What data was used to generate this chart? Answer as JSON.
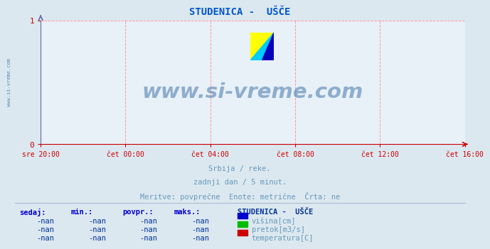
{
  "title": "STUDENICA -  UŠČE",
  "title_color": "#0055cc",
  "bg_color": "#dce8f0",
  "plot_bg_color": "#e8f0f8",
  "watermark_text": "www.si-vreme.com",
  "watermark_color": "#4477aa",
  "watermark_alpha": 0.55,
  "subtitle1": "Srbija / reke.",
  "subtitle2": "zadnji dan / 5 minut.",
  "subtitle3": "Meritve: povprečne  Enote: metrične  Črta: ne",
  "subtitle_color": "#6699bb",
  "xticklabels": [
    "sre 20:00",
    "čet 00:00",
    "čet 04:00",
    "čet 08:00",
    "čet 12:00",
    "čet 16:00"
  ],
  "yticks": [
    0,
    1
  ],
  "ylim": [
    0,
    1
  ],
  "grid_color": "#ff9999",
  "grid_style": "--",
  "xaxis_color": "#cc0000",
  "yaxis_color": "#6666aa",
  "tick_color": "#cc0000",
  "tick_label_color": "#cc0000",
  "legend_title": "STUDENICA -  UŠČE",
  "legend_title_color": "#003399",
  "legend_items": [
    {
      "label": "višina[cm]",
      "color": "#0000cc"
    },
    {
      "label": "pretok[m3/s]",
      "color": "#00bb00"
    },
    {
      "label": "temperatura[C]",
      "color": "#cc0000"
    }
  ],
  "table_headers": [
    "sedaj:",
    "min.:",
    "povpr.:",
    "maks.:"
  ],
  "table_rows": [
    [
      "-nan",
      "-nan",
      "-nan",
      "-nan"
    ],
    [
      "-nan",
      "-nan",
      "-nan",
      "-nan"
    ],
    [
      "-nan",
      "-nan",
      "-nan",
      "-nan"
    ]
  ],
  "table_header_color": "#0000cc",
  "table_value_color": "#003399",
  "left_label": "www.si-vreme.com",
  "left_label_color": "#5588aa",
  "font_family": "monospace"
}
